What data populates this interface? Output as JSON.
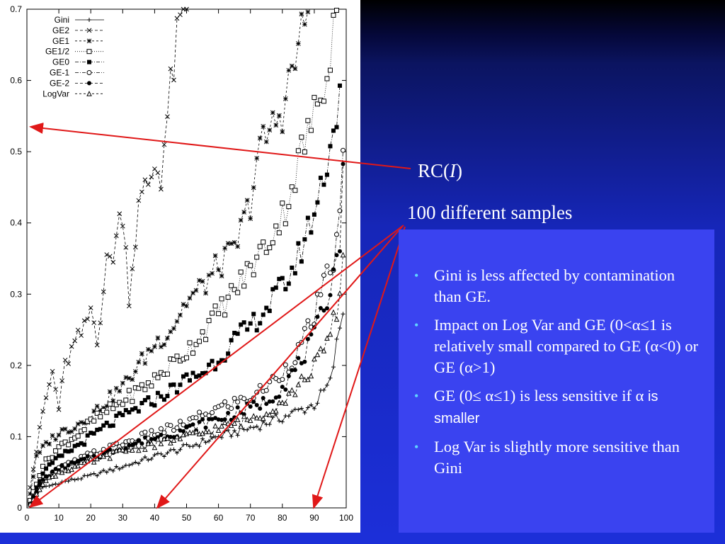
{
  "annotations": {
    "rc_label": "RC(I)",
    "rc_prefix": "RC(",
    "rc_var": "I",
    "rc_suffix": ")",
    "samples_label": "100 different samples"
  },
  "notes": [
    {
      "text": "Gini is less affected by contamination than GE."
    },
    {
      "text": "Impact on Log Var and GE (0<α≤1 is relatively small compared to GE (α<0) or GE (α>1)"
    },
    {
      "text": "GE (0≤ α≤1) is less sensitive if α",
      "extra": "is smaller"
    },
    {
      "text": "Log Var is slightly more sensitive than Gini"
    }
  ],
  "colors": {
    "arrow": "#e01818",
    "background": "#1c2fd8",
    "notes_box": "#3a43f0",
    "bullet": "#5fd3ff"
  },
  "chart_data": {
    "type": "line",
    "xlabel": "",
    "ylabel": "",
    "xlim": [
      0,
      100
    ],
    "ylim": [
      0,
      0.7
    ],
    "x_ticks": [
      "0",
      "10",
      "20",
      "30",
      "40",
      "50",
      "60",
      "70",
      "80",
      "90",
      "100"
    ],
    "y_ticks": [
      "0",
      "0.1",
      "0.2",
      "0.3",
      "0.4",
      "0.5",
      "0.6",
      "0.7"
    ],
    "legend_position": "top-left",
    "series": [
      {
        "name": "Gini",
        "marker": "plus",
        "dash": "",
        "anchors": [
          [
            1,
            0.005
          ],
          [
            2,
            0.02
          ],
          [
            5,
            0.028
          ],
          [
            10,
            0.035
          ],
          [
            20,
            0.045
          ],
          [
            30,
            0.058
          ],
          [
            40,
            0.072
          ],
          [
            50,
            0.085
          ],
          [
            60,
            0.1
          ],
          [
            70,
            0.112
          ],
          [
            80,
            0.127
          ],
          [
            90,
            0.145
          ],
          [
            95,
            0.175
          ],
          [
            99,
            0.28
          ]
        ]
      },
      {
        "name": "GE2",
        "marker": "x",
        "dash": "4,3",
        "anchors": [
          [
            1,
            0.03
          ],
          [
            3,
            0.08
          ],
          [
            5,
            0.135
          ],
          [
            8,
            0.19
          ],
          [
            10,
            0.14
          ],
          [
            12,
            0.2
          ],
          [
            15,
            0.23
          ],
          [
            18,
            0.25
          ],
          [
            20,
            0.28
          ],
          [
            22,
            0.24
          ],
          [
            25,
            0.34
          ],
          [
            27,
            0.36
          ],
          [
            30,
            0.42
          ],
          [
            32,
            0.3
          ],
          [
            35,
            0.42
          ],
          [
            40,
            0.48
          ],
          [
            42,
            0.47
          ],
          [
            44,
            0.55
          ],
          [
            46,
            0.62
          ],
          [
            48,
            0.68
          ],
          [
            50,
            0.7
          ]
        ]
      },
      {
        "name": "GE1",
        "marker": "star",
        "dash": "3,3",
        "anchors": [
          [
            1,
            0.02
          ],
          [
            3,
            0.07
          ],
          [
            6,
            0.09
          ],
          [
            10,
            0.105
          ],
          [
            15,
            0.115
          ],
          [
            20,
            0.13
          ],
          [
            25,
            0.15
          ],
          [
            30,
            0.17
          ],
          [
            35,
            0.2
          ],
          [
            40,
            0.23
          ],
          [
            45,
            0.25
          ],
          [
            50,
            0.29
          ],
          [
            55,
            0.31
          ],
          [
            60,
            0.34
          ],
          [
            65,
            0.36
          ],
          [
            70,
            0.43
          ],
          [
            72,
            0.49
          ],
          [
            75,
            0.52
          ],
          [
            80,
            0.56
          ],
          [
            84,
            0.63
          ],
          [
            86,
            0.66
          ],
          [
            88,
            0.7
          ]
        ]
      },
      {
        "name": "GE1/2",
        "marker": "square-open",
        "dash": "1,2",
        "anchors": [
          [
            1,
            0.01
          ],
          [
            5,
            0.06
          ],
          [
            10,
            0.085
          ],
          [
            15,
            0.1
          ],
          [
            20,
            0.12
          ],
          [
            25,
            0.135
          ],
          [
            30,
            0.15
          ],
          [
            35,
            0.165
          ],
          [
            40,
            0.18
          ],
          [
            45,
            0.2
          ],
          [
            50,
            0.22
          ],
          [
            55,
            0.245
          ],
          [
            60,
            0.275
          ],
          [
            65,
            0.305
          ],
          [
            70,
            0.335
          ],
          [
            75,
            0.37
          ],
          [
            80,
            0.41
          ],
          [
            83,
            0.45
          ],
          [
            86,
            0.5
          ],
          [
            90,
            0.55
          ],
          [
            93,
            0.6
          ],
          [
            95,
            0.65
          ],
          [
            97,
            0.7
          ]
        ]
      },
      {
        "name": "GE0",
        "marker": "square-filled",
        "dash": "5,2,1,2",
        "anchors": [
          [
            1,
            0.005
          ],
          [
            5,
            0.05
          ],
          [
            10,
            0.07
          ],
          [
            15,
            0.085
          ],
          [
            20,
            0.1
          ],
          [
            25,
            0.115
          ],
          [
            30,
            0.128
          ],
          [
            35,
            0.14
          ],
          [
            40,
            0.152
          ],
          [
            45,
            0.165
          ],
          [
            50,
            0.18
          ],
          [
            55,
            0.19
          ],
          [
            60,
            0.21
          ],
          [
            65,
            0.235
          ],
          [
            70,
            0.255
          ],
          [
            75,
            0.28
          ],
          [
            80,
            0.31
          ],
          [
            84,
            0.34
          ],
          [
            88,
            0.39
          ],
          [
            91,
            0.43
          ],
          [
            94,
            0.49
          ],
          [
            96,
            0.53
          ],
          [
            98,
            0.58
          ]
        ]
      },
      {
        "name": "GE-1",
        "marker": "circle-open",
        "dash": "5,2,1,2",
        "anchors": [
          [
            1,
            0.005
          ],
          [
            5,
            0.04
          ],
          [
            10,
            0.055
          ],
          [
            20,
            0.075
          ],
          [
            30,
            0.09
          ],
          [
            40,
            0.105
          ],
          [
            50,
            0.118
          ],
          [
            55,
            0.13
          ],
          [
            60,
            0.14
          ],
          [
            65,
            0.148
          ],
          [
            70,
            0.155
          ],
          [
            75,
            0.17
          ],
          [
            80,
            0.19
          ],
          [
            85,
            0.22
          ],
          [
            90,
            0.27
          ],
          [
            93,
            0.31
          ],
          [
            96,
            0.35
          ],
          [
            98,
            0.4
          ],
          [
            99,
            0.5
          ]
        ]
      },
      {
        "name": "GE-2",
        "marker": "circle-filled",
        "dash": "4,3",
        "anchors": [
          [
            1,
            0.005
          ],
          [
            5,
            0.04
          ],
          [
            10,
            0.055
          ],
          [
            20,
            0.07
          ],
          [
            30,
            0.085
          ],
          [
            40,
            0.098
          ],
          [
            50,
            0.11
          ],
          [
            55,
            0.118
          ],
          [
            60,
            0.125
          ],
          [
            65,
            0.132
          ],
          [
            70,
            0.14
          ],
          [
            75,
            0.15
          ],
          [
            80,
            0.17
          ],
          [
            85,
            0.2
          ],
          [
            90,
            0.24
          ],
          [
            93,
            0.28
          ],
          [
            96,
            0.33
          ],
          [
            98,
            0.38
          ],
          [
            99,
            0.46
          ]
        ]
      },
      {
        "name": "LogVar",
        "marker": "triangle-open",
        "dash": "3,3",
        "anchors": [
          [
            1,
            0.005
          ],
          [
            5,
            0.035
          ],
          [
            10,
            0.05
          ],
          [
            20,
            0.065
          ],
          [
            30,
            0.08
          ],
          [
            40,
            0.09
          ],
          [
            50,
            0.1
          ],
          [
            55,
            0.105
          ],
          [
            60,
            0.112
          ],
          [
            65,
            0.118
          ],
          [
            70,
            0.125
          ],
          [
            75,
            0.135
          ],
          [
            80,
            0.15
          ],
          [
            85,
            0.17
          ],
          [
            90,
            0.2
          ],
          [
            93,
            0.22
          ],
          [
            96,
            0.26
          ],
          [
            98,
            0.3
          ],
          [
            99,
            0.35
          ]
        ]
      }
    ]
  }
}
